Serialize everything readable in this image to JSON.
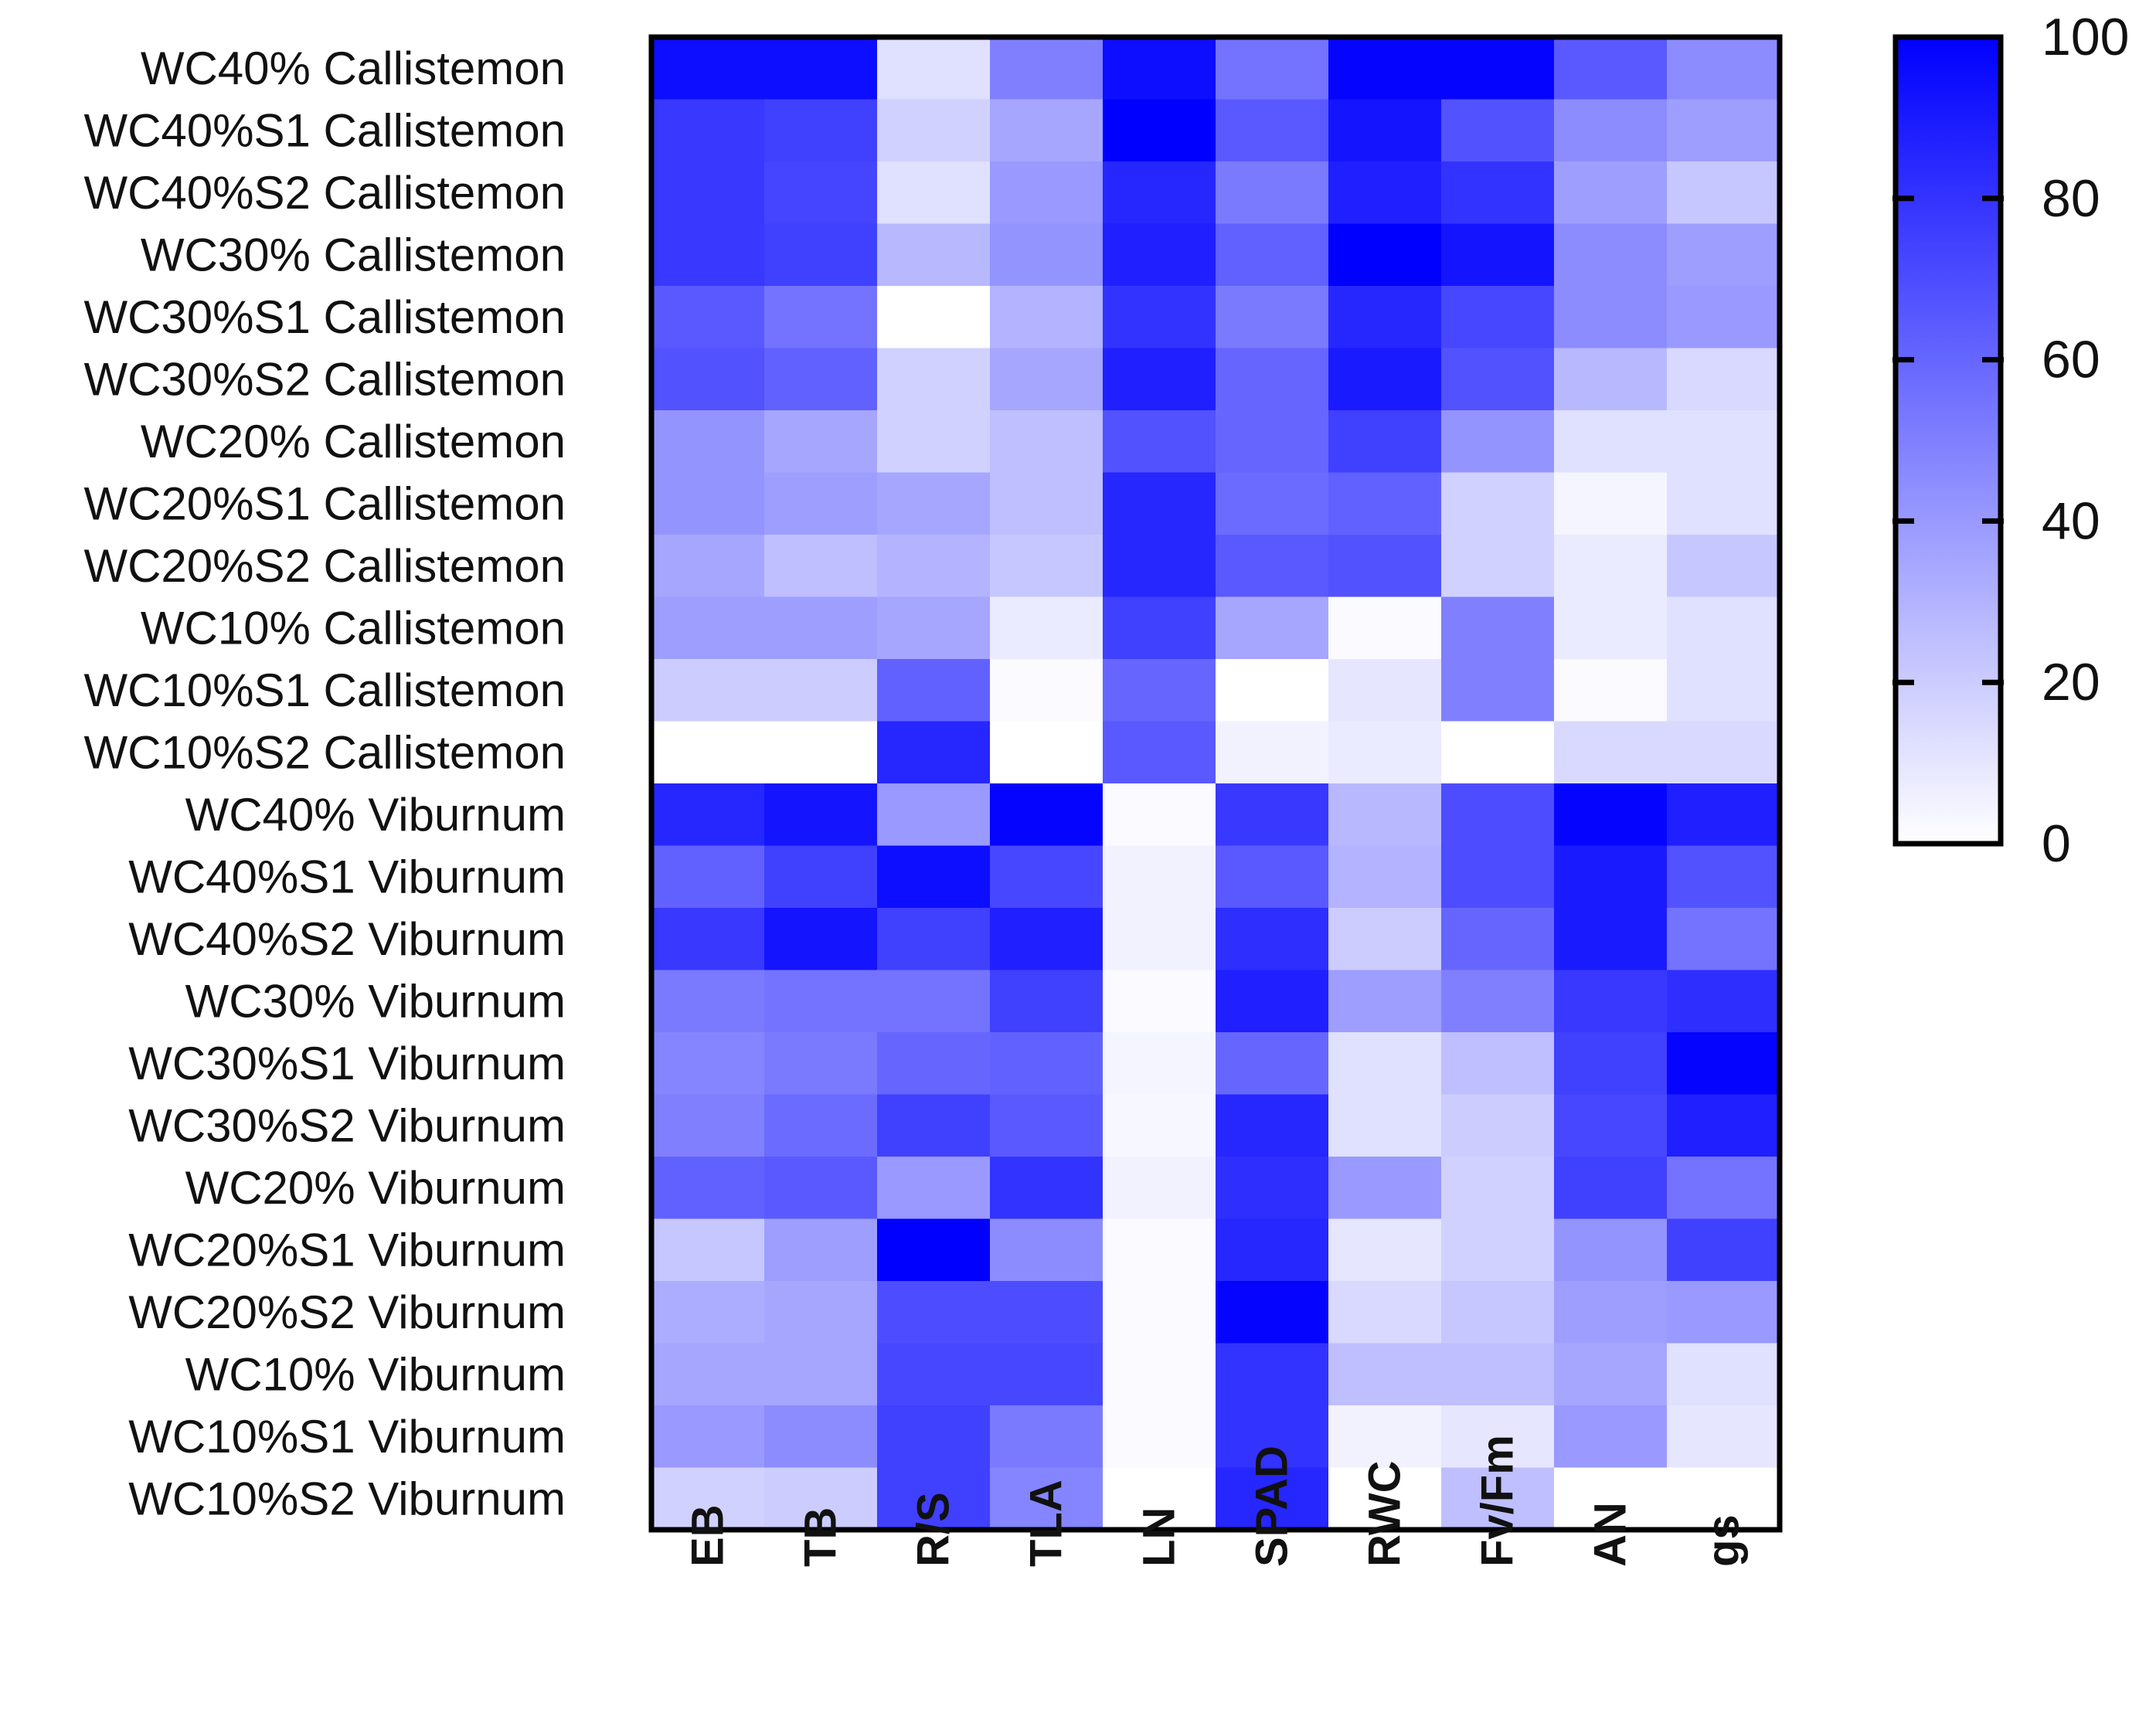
{
  "chart_data": {
    "type": "heatmap",
    "title": "",
    "xlabel": "",
    "ylabel": "",
    "rows": [
      "WC40% Callistemon",
      "WC40%S1 Callistemon",
      "WC40%S2 Callistemon",
      "WC30% Callistemon",
      "WC30%S1 Callistemon",
      "WC30%S2 Callistemon",
      "WC20% Callistemon",
      "WC20%S1 Callistemon",
      "WC20%S2 Callistemon",
      "WC10% Callistemon",
      "WC10%S1 Callistemon",
      "WC10%S2 Callistemon",
      "WC40% Viburnum",
      "WC40%S1 Viburnum",
      "WC40%S2 Viburnum",
      "WC30% Viburnum",
      "WC30%S1 Viburnum",
      "WC30%S2 Viburnum",
      "WC20% Viburnum",
      "WC20%S1 Viburnum",
      "WC20%S2 Viburnum",
      "WC10% Viburnum",
      "WC10%S1 Viburnum",
      "WC10%S2 Viburnum"
    ],
    "columns": [
      "EB",
      "TB",
      "R/S",
      "TLA",
      "LN",
      "SPAD",
      "RWC",
      "Fv/Fm",
      "AN",
      "gs"
    ],
    "values": [
      [
        95,
        95,
        12,
        50,
        95,
        55,
        98,
        98,
        65,
        45
      ],
      [
        78,
        75,
        18,
        35,
        100,
        65,
        92,
        68,
        45,
        38
      ],
      [
        78,
        73,
        12,
        40,
        85,
        52,
        88,
        80,
        38,
        22
      ],
      [
        78,
        75,
        28,
        42,
        88,
        62,
        100,
        92,
        45,
        38
      ],
      [
        65,
        55,
        0,
        30,
        80,
        52,
        85,
        72,
        45,
        40
      ],
      [
        68,
        62,
        18,
        35,
        88,
        60,
        90,
        68,
        28,
        15
      ],
      [
        42,
        35,
        18,
        25,
        68,
        60,
        75,
        42,
        12,
        12
      ],
      [
        42,
        38,
        35,
        25,
        85,
        58,
        62,
        18,
        4,
        12
      ],
      [
        35,
        25,
        30,
        22,
        85,
        65,
        68,
        18,
        8,
        22
      ],
      [
        38,
        38,
        35,
        8,
        75,
        35,
        2,
        50,
        8,
        12
      ],
      [
        20,
        20,
        62,
        2,
        60,
        0,
        10,
        50,
        2,
        12
      ],
      [
        0,
        0,
        85,
        0,
        65,
        5,
        8,
        0,
        15,
        15
      ],
      [
        85,
        92,
        40,
        98,
        2,
        78,
        28,
        70,
        98,
        88
      ],
      [
        62,
        75,
        95,
        72,
        5,
        65,
        30,
        70,
        90,
        68
      ],
      [
        78,
        92,
        75,
        88,
        5,
        82,
        20,
        60,
        90,
        55
      ],
      [
        52,
        55,
        55,
        75,
        2,
        88,
        38,
        50,
        78,
        82
      ],
      [
        48,
        52,
        60,
        62,
        4,
        60,
        12,
        25,
        75,
        98
      ],
      [
        50,
        58,
        75,
        65,
        3,
        85,
        12,
        20,
        72,
        88
      ],
      [
        62,
        65,
        40,
        80,
        5,
        82,
        40,
        18,
        75,
        55
      ],
      [
        22,
        38,
        100,
        45,
        2,
        85,
        10,
        18,
        42,
        75
      ],
      [
        32,
        35,
        70,
        70,
        2,
        98,
        15,
        22,
        38,
        40
      ],
      [
        35,
        35,
        72,
        72,
        2,
        80,
        25,
        25,
        35,
        12
      ],
      [
        40,
        45,
        75,
        52,
        2,
        80,
        5,
        10,
        40,
        10
      ],
      [
        18,
        20,
        75,
        48,
        0,
        85,
        0,
        25,
        0,
        0
      ]
    ],
    "color_scale": {
      "min": 0,
      "max": 100,
      "min_color": "#ffffff",
      "max_color": "#0000ff",
      "ticks": [
        0,
        20,
        40,
        60,
        80,
        100
      ],
      "tick_labels": [
        "0",
        "20",
        "40",
        "60",
        "80",
        "100"
      ]
    },
    "legend": "right"
  }
}
